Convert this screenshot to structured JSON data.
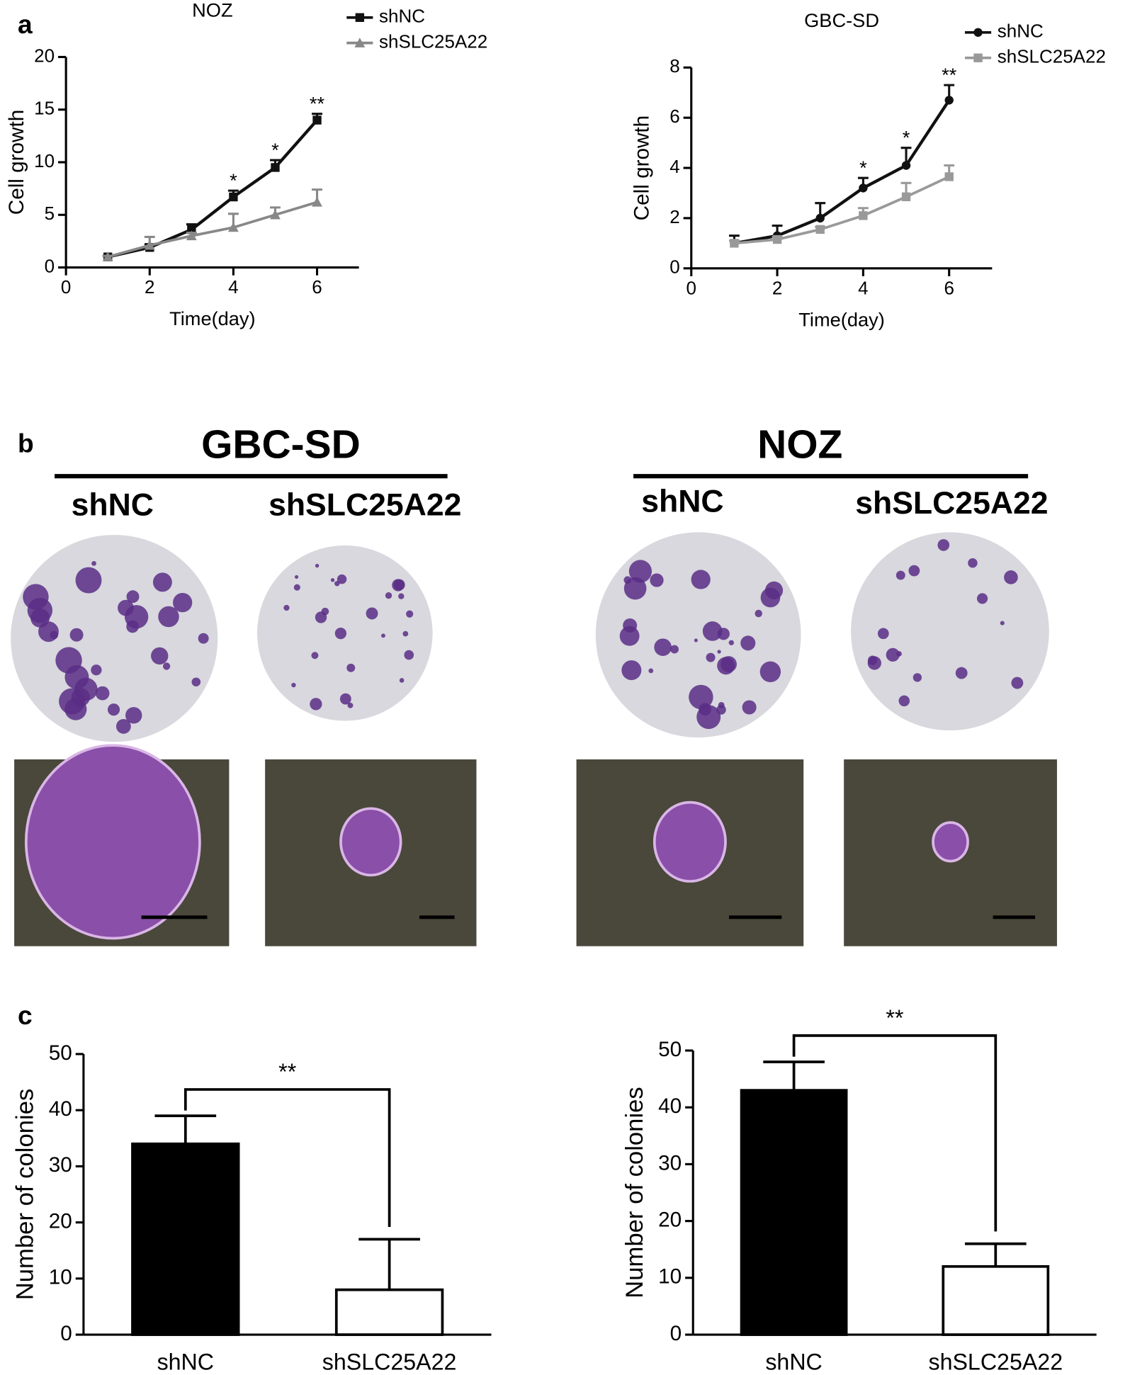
{
  "panel_labels": [
    "a",
    "b",
    "c"
  ],
  "chart_data": [
    {
      "type": "line",
      "title": "NOZ",
      "x_label": "Time(day)",
      "y_label": "Cell growth",
      "x": [
        1,
        2,
        3,
        4,
        5,
        6
      ],
      "series": [
        {
          "name": "shNC",
          "color": "#111111",
          "marker": "square",
          "values": [
            1,
            1.9,
            3.6,
            6.7,
            9.5,
            14
          ],
          "errors": [
            0.1,
            0.3,
            0.5,
            0.6,
            0.7,
            0.6
          ]
        },
        {
          "name": "shSLC25A22",
          "color": "#888888",
          "marker": "triangle",
          "values": [
            1,
            2.1,
            3,
            3.8,
            5,
            6.2
          ],
          "errors": [
            0.1,
            0.8,
            0.3,
            1.3,
            0.7,
            1.2
          ]
        }
      ],
      "annotations": [
        {
          "x": 4,
          "text": "*"
        },
        {
          "x": 5,
          "text": "*"
        },
        {
          "x": 6,
          "text": "**"
        }
      ],
      "xlim": [
        0,
        7
      ],
      "xticks": [
        0,
        2,
        4,
        6
      ],
      "ylim": [
        0,
        20
      ],
      "yticks": [
        0,
        5,
        10,
        15,
        20
      ],
      "legend": "upper right"
    },
    {
      "type": "line",
      "title": "GBC-SD",
      "x_label": "Time(day)",
      "y_label": "Cell growth",
      "x": [
        1,
        2,
        3,
        4,
        5,
        6
      ],
      "series": [
        {
          "name": "shNC",
          "color": "#111111",
          "marker": "circle",
          "values": [
            1,
            1.3,
            2,
            3.2,
            4.1,
            6.7
          ],
          "errors": [
            0.3,
            0.4,
            0.6,
            0.4,
            0.7,
            0.6
          ]
        },
        {
          "name": "shSLC25A22",
          "color": "#999999",
          "marker": "square",
          "values": [
            1,
            1.15,
            1.55,
            2.1,
            2.85,
            3.65
          ],
          "errors": [
            0.1,
            0.1,
            0.1,
            0.3,
            0.55,
            0.45
          ]
        }
      ],
      "annotations": [
        {
          "x": 4,
          "text": "*"
        },
        {
          "x": 5,
          "text": "*"
        },
        {
          "x": 6,
          "text": "**"
        }
      ],
      "xlim": [
        0,
        7
      ],
      "xticks": [
        0,
        2,
        4,
        6
      ],
      "ylim": [
        0,
        8
      ],
      "yticks": [
        0,
        2,
        4,
        6,
        8
      ],
      "legend": "upper right"
    },
    {
      "type": "bar",
      "y_label": "Number of colonies",
      "categories": [
        "shNC",
        "shSLC25A22"
      ],
      "values": [
        34,
        8
      ],
      "errors": [
        5,
        9
      ],
      "colors": [
        "#000000",
        "#ffffff"
      ],
      "annotation": "**",
      "ylim": [
        0,
        50
      ],
      "yticks": [
        0,
        10,
        20,
        30,
        40,
        50
      ]
    },
    {
      "type": "bar",
      "y_label": "Number of colonies",
      "categories": [
        "shNC",
        "shSLC25A22"
      ],
      "values": [
        43,
        12
      ],
      "errors": [
        5,
        4
      ],
      "colors": [
        "#000000",
        "#ffffff"
      ],
      "annotation": "**",
      "ylim": [
        0,
        50
      ],
      "yticks": [
        0,
        10,
        20,
        30,
        40,
        50
      ]
    }
  ],
  "panel_b": [
    {
      "title": "GBC-SD",
      "groups": [
        "shNC",
        "shSLC25A22"
      ]
    },
    {
      "title": "NOZ",
      "groups": [
        "shNC",
        "shSLC25A22"
      ]
    }
  ]
}
